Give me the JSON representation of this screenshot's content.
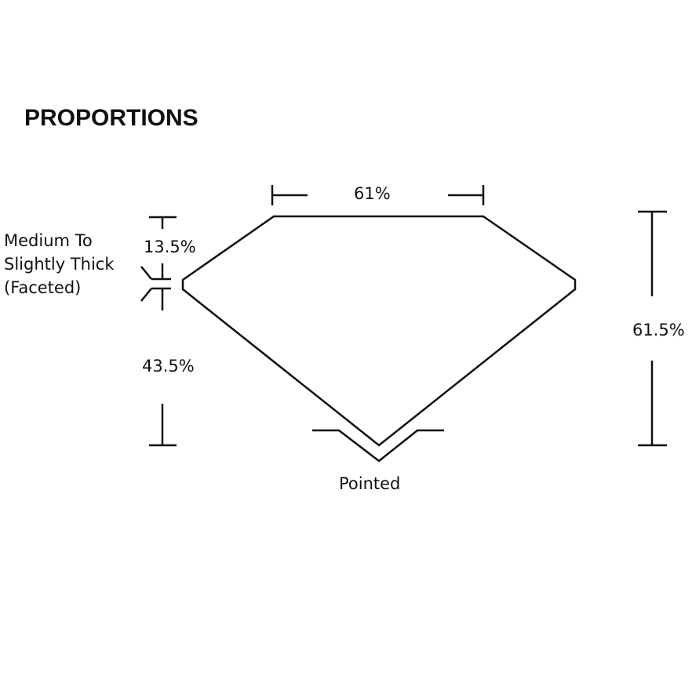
{
  "title": "PROPORTIONS",
  "labels": {
    "table": "61%",
    "crown_height": "13.5%",
    "pavilion_depth": "43.5%",
    "total_depth": "61.5%",
    "girdle": [
      "Medium To",
      "Slightly Thick",
      "(Faceted)"
    ],
    "culet": "Pointed"
  },
  "colors": {
    "stroke": "#111111",
    "background": "#ffffff"
  }
}
